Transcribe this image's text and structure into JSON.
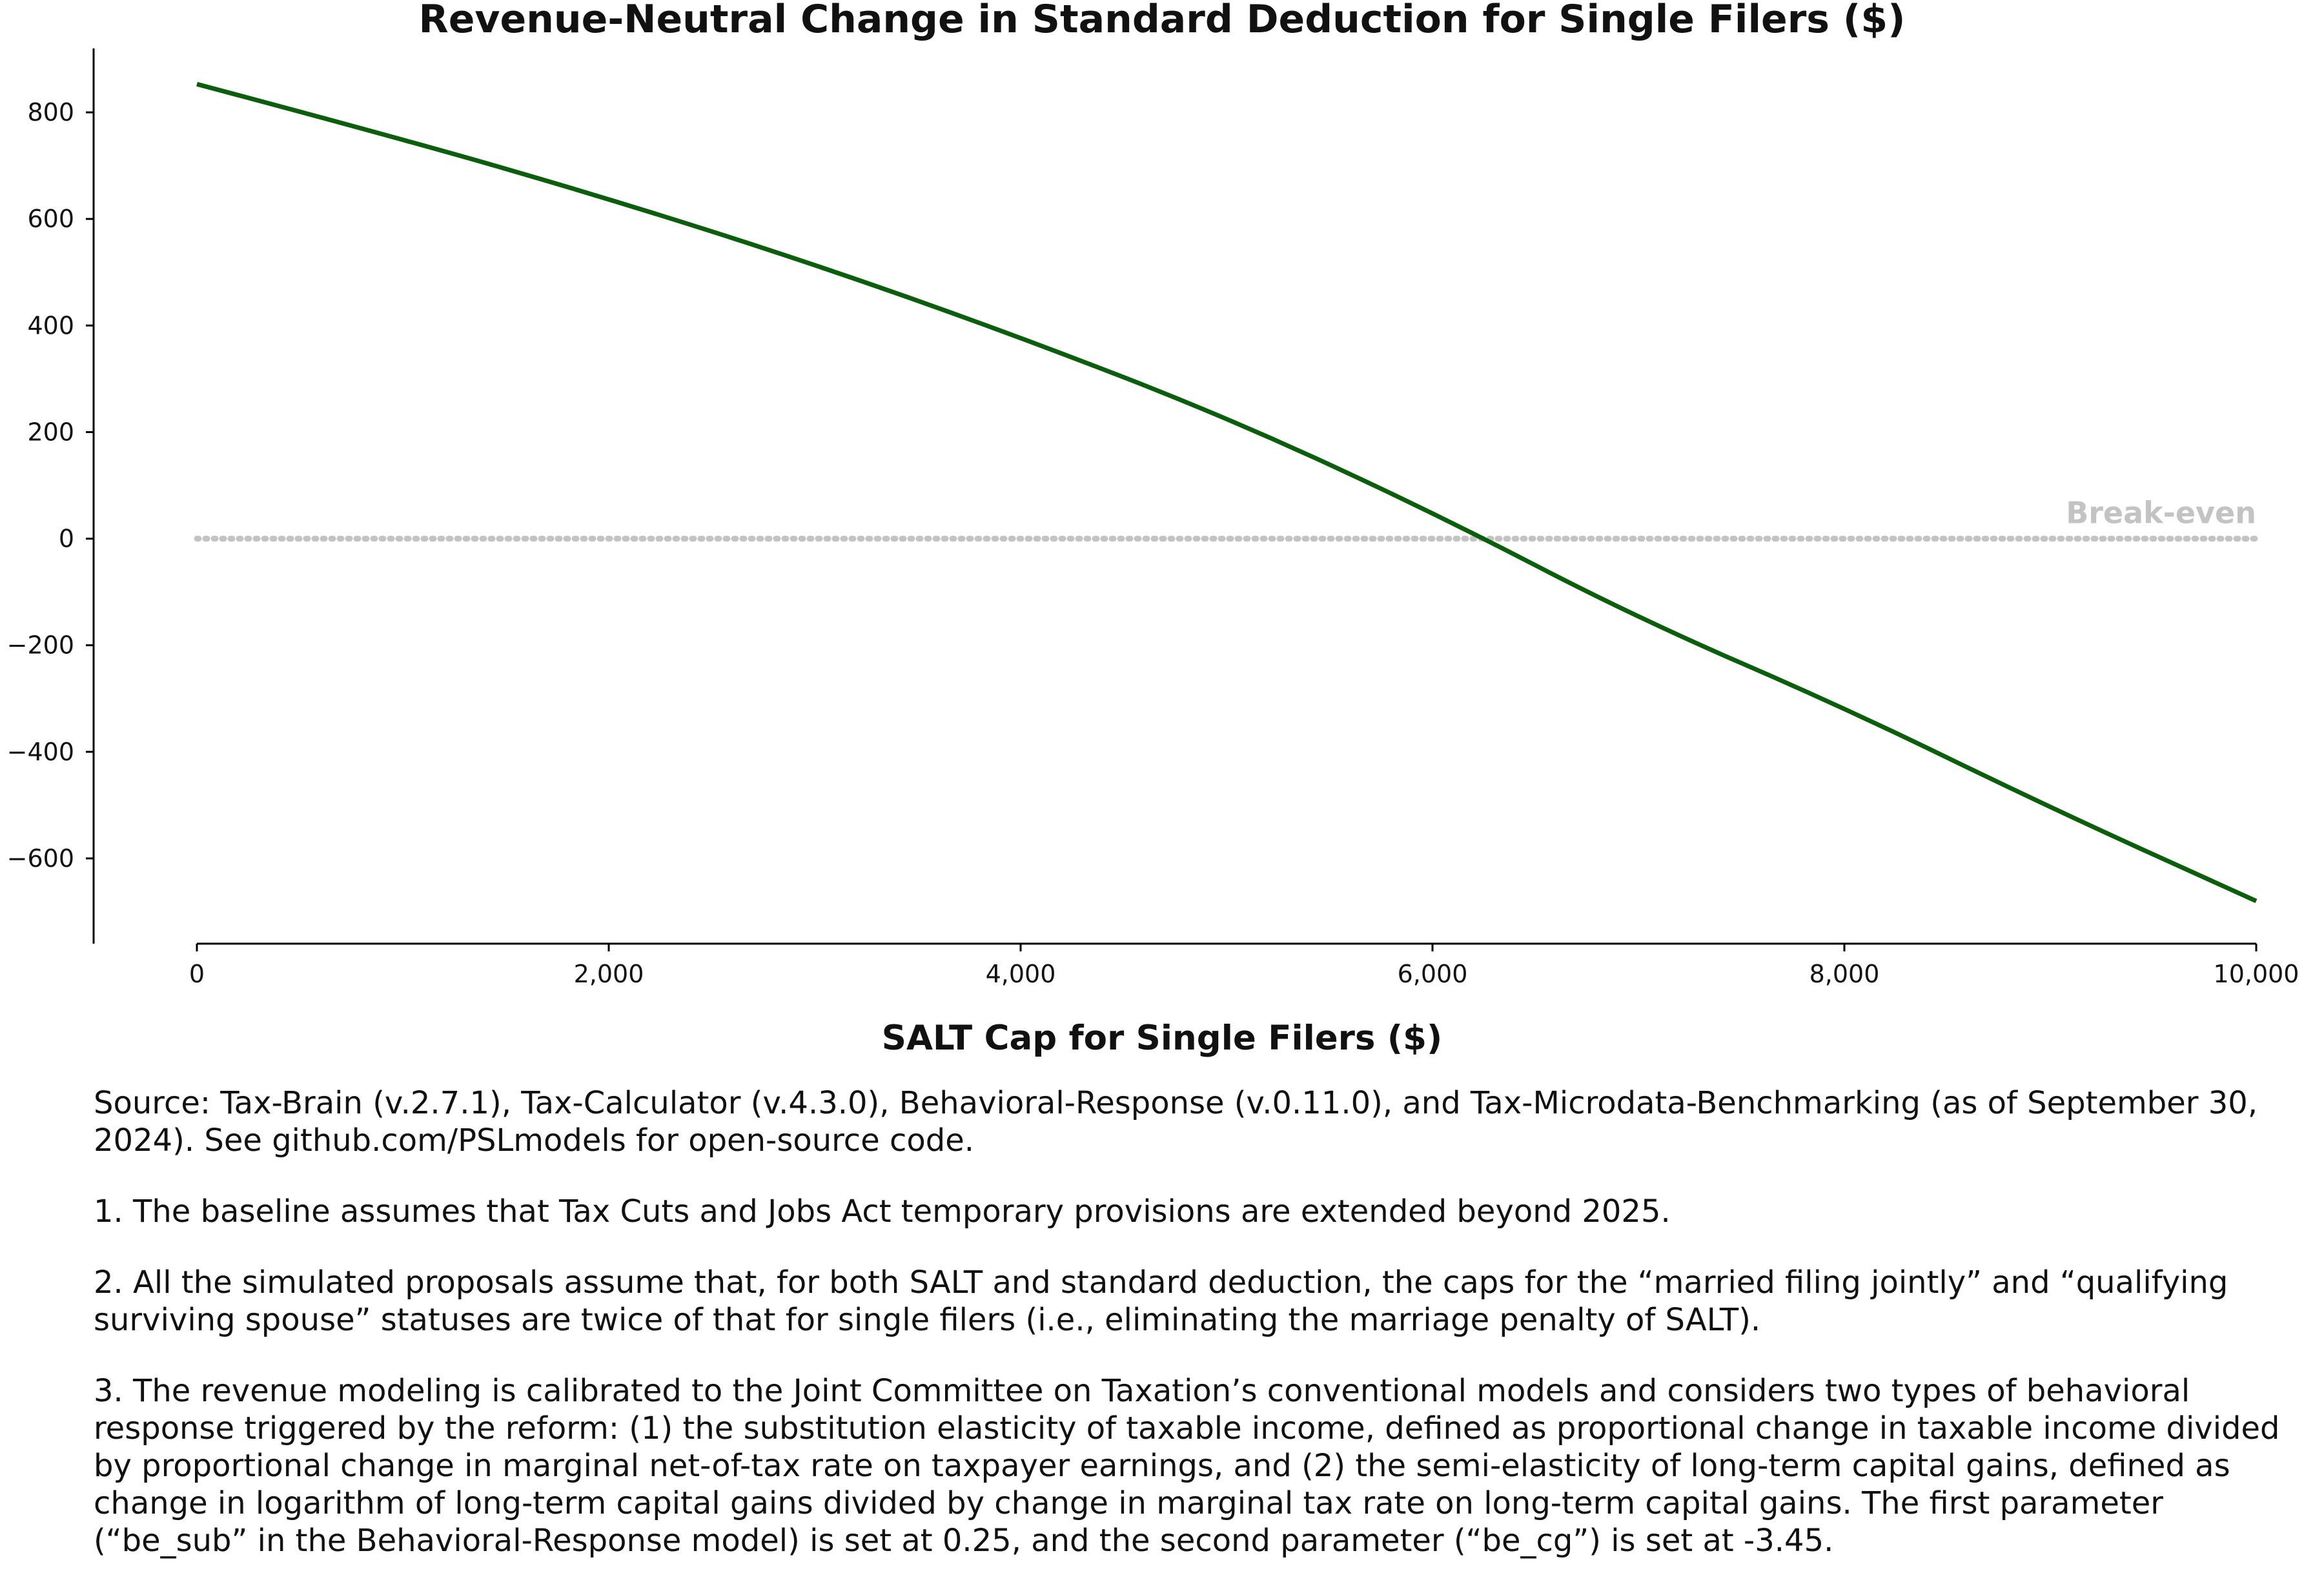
{
  "chart_data": {
    "type": "line",
    "title": "Revenue-Neutral Change in Standard Deduction for Single Filers ($)",
    "xlabel": "SALT Cap for Single Filers ($)",
    "ylabel": "",
    "xlim": [
      0,
      10000
    ],
    "ylim": [
      -760,
      920
    ],
    "x_ticks": [
      0,
      2000,
      4000,
      6000,
      8000,
      10000
    ],
    "x_tick_labels": [
      "0",
      "2,000",
      "4,000",
      "6,000",
      "8,000",
      "10,000"
    ],
    "y_ticks": [
      800,
      600,
      400,
      200,
      0,
      -200,
      -400,
      -600
    ],
    "y_tick_labels": [
      "800",
      "600",
      "400",
      "200",
      "0",
      "−200",
      "−400",
      "−600"
    ],
    "grid": false,
    "series": [
      {
        "color": "#0b5e0b",
        "x": [
          0,
          1000,
          2000,
          3000,
          4000,
          5000,
          6000,
          7000,
          8000,
          9000,
          10000
        ],
        "y": [
          853,
          750,
          638,
          515,
          378,
          228,
          50,
          -150,
          -317,
          -505,
          -680
        ]
      }
    ],
    "reference_line": {
      "y": 0,
      "label": "Break-even",
      "color": "#c3c3c3",
      "style": "dotted"
    }
  },
  "notes": {
    "source": "Source: Tax-Brain (v.2.7.1), Tax-Calculator (v.4.3.0), Behavioral-Response (v.0.11.0), and Tax-Microdata-Benchmarking (as of September 30, 2024). See github.com/PSLmodels for open-source code.",
    "note1": "1. The baseline assumes that Tax Cuts and Jobs Act temporary provisions are extended beyond 2025.",
    "note2": "2. All the simulated proposals assume that, for both SALT and standard deduction, the caps for the “married filing jointly” and “qualifying surviving spouse” statuses are twice of that for single filers (i.e., eliminating the marriage penalty of SALT).",
    "note3": "3. The revenue modeling is calibrated to the Joint Committee on Taxation’s conventional models and considers two types of behavioral response triggered by the reform: (1) the substitution elasticity of taxable income, defined as proportional change in taxable income divided by proportional change in marginal net-of-tax rate on taxpayer earnings, and (2) the semi-elasticity of long-term capital gains, defined as change in logarithm of long-term capital gains divided by change in marginal tax rate on long-term capital gains. The first parameter (“be_sub” in the Behavioral-Response model) is set at 0.25, and the second parameter (“be_cg”) is set at -3.45."
  }
}
